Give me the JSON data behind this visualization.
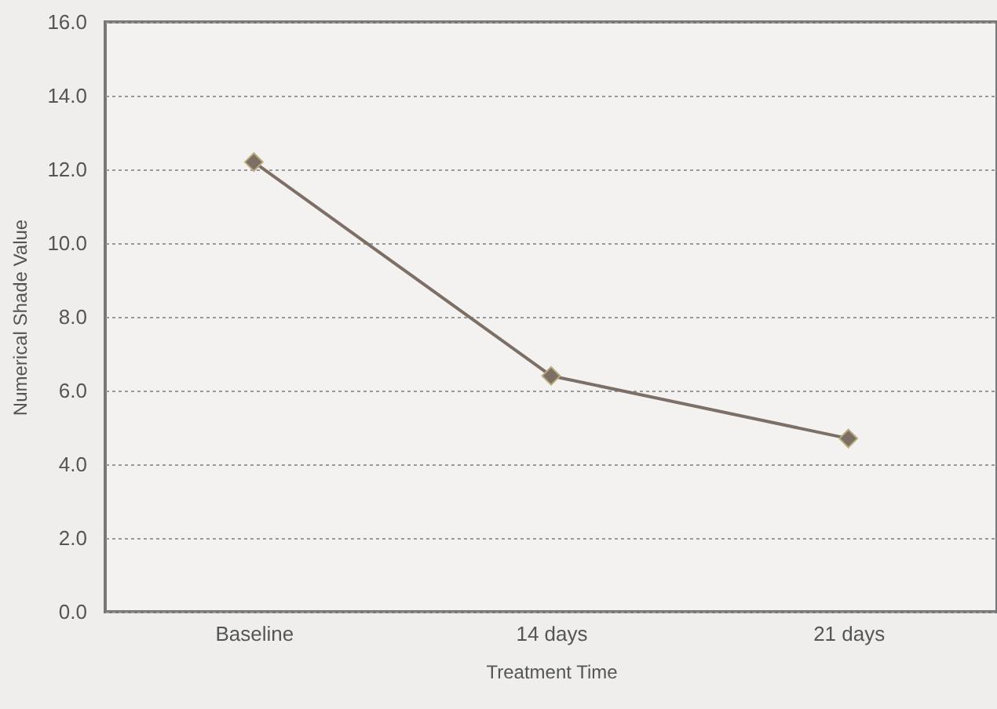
{
  "chart_data": {
    "type": "line",
    "xlabel": "Treatment Time",
    "ylabel": "Numerical Shade Value",
    "categories": [
      "Baseline",
      "14 days",
      "21 days"
    ],
    "series": [
      {
        "color": "#7d6e66",
        "values": [
          12.2,
          6.4,
          4.7
        ]
      }
    ],
    "ylim": [
      0,
      16
    ],
    "yticks": [
      {
        "value": 0,
        "label": "0.0"
      },
      {
        "value": 2,
        "label": "2.0"
      },
      {
        "value": 4,
        "label": "4.0"
      },
      {
        "value": 6,
        "label": "6.0"
      },
      {
        "value": 8,
        "label": "8.0"
      },
      {
        "value": 10,
        "label": "10.0"
      },
      {
        "value": 12,
        "label": "12.0"
      },
      {
        "value": 14,
        "label": "14.0"
      },
      {
        "value": 16,
        "label": "16.0"
      }
    ],
    "grid": "y",
    "marker": "diamond",
    "line_style": "solid",
    "legend": false
  }
}
